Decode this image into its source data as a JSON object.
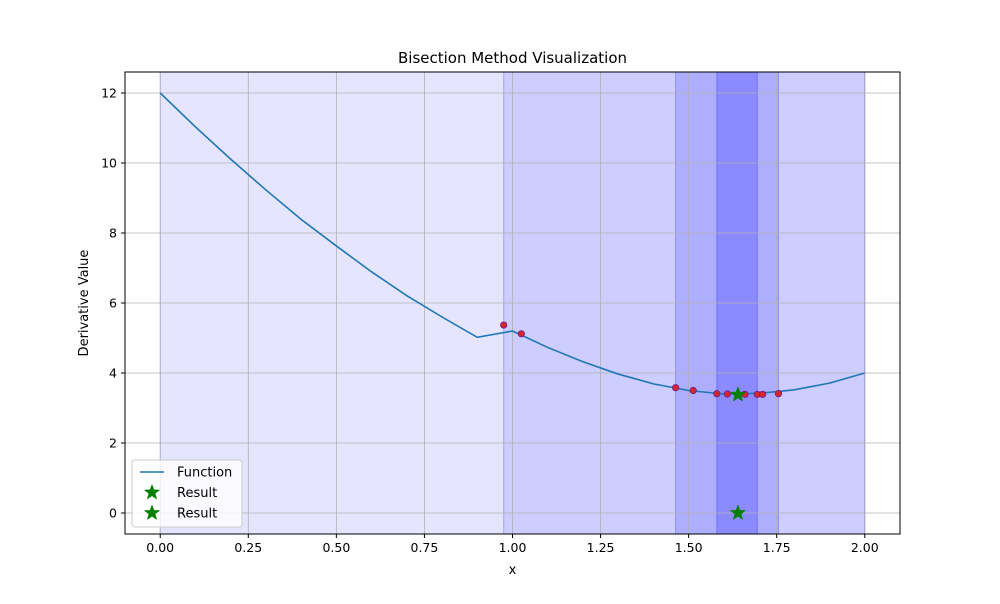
{
  "chart_data": {
    "type": "line",
    "title": "Bisection Method Visualization",
    "xlabel": "x",
    "ylabel": "Derivative Value",
    "xlim": [
      -0.1,
      2.1
    ],
    "ylim": [
      -0.6,
      12.6
    ],
    "xticks": [
      0.0,
      0.25,
      0.5,
      0.75,
      1.0,
      1.25,
      1.5,
      1.75,
      2.0
    ],
    "xtick_labels": [
      "0.00",
      "0.25",
      "0.50",
      "0.75",
      "1.00",
      "1.25",
      "1.50",
      "1.75",
      "2.00"
    ],
    "yticks": [
      0,
      2,
      4,
      6,
      8,
      10,
      12
    ],
    "ytick_labels": [
      "0",
      "2",
      "4",
      "6",
      "8",
      "10",
      "12"
    ],
    "grid": true,
    "legend_position": "lower-left",
    "series": [
      {
        "name": "Function",
        "type": "line",
        "color": "#1f77b4",
        "x": [
          0.0,
          0.1,
          0.2,
          0.3,
          0.4,
          0.5,
          0.6,
          0.7,
          0.8,
          0.9,
          1.0,
          1.1,
          1.2,
          1.3,
          1.4,
          1.5,
          1.6,
          1.7,
          1.8,
          1.9,
          2.0
        ],
        "y": [
          12.0,
          11.03,
          10.11,
          9.23,
          8.39,
          7.63,
          6.89,
          6.21,
          5.6,
          5.02,
          5.2,
          4.73,
          4.32,
          3.97,
          3.69,
          3.5,
          3.4,
          3.42,
          3.52,
          3.71,
          4.0
        ]
      }
    ],
    "iteration_points": {
      "color": "#d62728",
      "edge_color": "#6a1b9a",
      "x": [
        0.975,
        1.025,
        1.463,
        1.513,
        1.58,
        1.61,
        1.66,
        1.695,
        1.71,
        1.755
      ],
      "y": [
        5.37,
        5.12,
        3.58,
        3.5,
        3.41,
        3.4,
        3.39,
        3.39,
        3.39,
        3.41
      ]
    },
    "intervals": {
      "color": "#0000ff",
      "ranges": [
        [
          0.0,
          2.0
        ],
        [
          0.975,
          2.0
        ],
        [
          1.463,
          1.755
        ],
        [
          1.58,
          1.695
        ]
      ],
      "opacities": [
        0.1,
        0.1,
        0.15,
        0.2
      ]
    },
    "results": [
      {
        "name": "Result",
        "x": 1.64,
        "y": 3.38,
        "color": "#008000"
      },
      {
        "name": "Result",
        "x": 1.64,
        "y": 0.0,
        "color": "#008000"
      }
    ]
  }
}
